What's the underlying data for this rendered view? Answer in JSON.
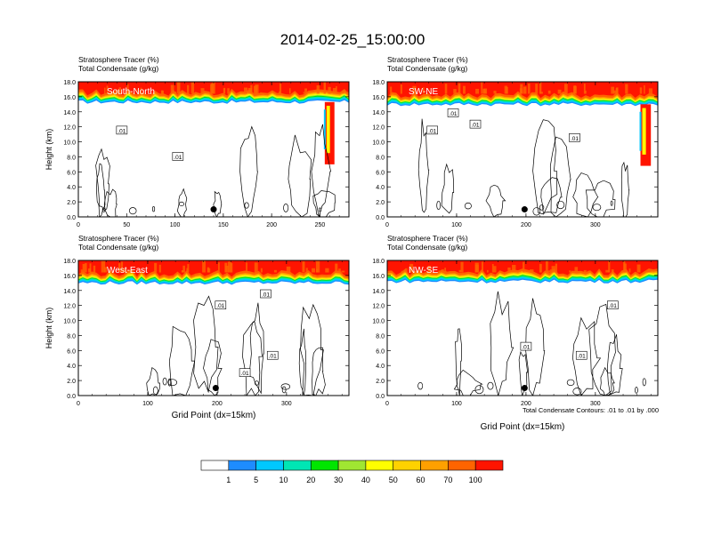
{
  "title": "2014-02-25_15:00:00",
  "colors": {
    "levels": [
      "#ffffff",
      "#1e8cff",
      "#00c8ff",
      "#00e6b4",
      "#00e600",
      "#a0e632",
      "#ffff00",
      "#ffd200",
      "#ffa000",
      "#ff6400",
      "#ff1400"
    ],
    "contour": "#000000"
  },
  "colorbar": {
    "labels": [
      "1",
      "5",
      "10",
      "20",
      "30",
      "40",
      "50",
      "60",
      "70",
      "100"
    ]
  },
  "footnote": "Total Condensate Contours: .01 to .01 by .000",
  "chart_data": [
    {
      "type": "heatmap",
      "label": "South-North",
      "title_line1": "Stratosphere Tracer   (%)",
      "title_line2": "Total Condensate   (g/kg)",
      "ylabel": "Height (km)",
      "xlabel": "",
      "xlim": [
        0,
        280
      ],
      "ylim": [
        0,
        18
      ],
      "xticks": [
        "0",
        "50",
        "100",
        "150",
        "200",
        "250"
      ],
      "xtick_values": [
        0,
        50,
        100,
        150,
        200,
        250
      ],
      "yticks": [
        "0.0",
        "2.0",
        "4.0",
        "6.0",
        "8.0",
        "10.0",
        "12.0",
        "14.0",
        "16.0",
        "18.0"
      ],
      "tracer_base_km": 15.3,
      "wall": [
        255,
        265,
        7.0
      ],
      "marker": [
        140,
        1.0
      ],
      "contour_labels": [
        {
          "text": ".01",
          "x": 45,
          "y": 11.5
        },
        {
          "text": ".01",
          "x": 103,
          "y": 8.0
        }
      ]
    },
    {
      "type": "heatmap",
      "label": "SW-NE",
      "title_line1": "Stratosphere Tracer   (%)",
      "title_line2": "Total Condensate   (g/kg)",
      "ylabel": "",
      "xlabel": "",
      "xlim": [
        0,
        390
      ],
      "ylim": [
        0,
        18
      ],
      "xticks": [
        "0",
        "100",
        "200",
        "300"
      ],
      "xtick_values": [
        0,
        100,
        200,
        300
      ],
      "yticks": [
        "0.0",
        "2.0",
        "4.0",
        "6.0",
        "8.0",
        "10.0",
        "12.0",
        "14.0",
        "16.0",
        "18.0"
      ],
      "tracer_base_km": 15.0,
      "wall": [
        365,
        380,
        6.8
      ],
      "marker": [
        198,
        1.0
      ],
      "contour_labels": [
        {
          "text": ".01",
          "x": 65,
          "y": 11.5
        },
        {
          "text": ".01",
          "x": 127,
          "y": 12.3
        },
        {
          "text": ".01",
          "x": 270,
          "y": 10.5
        },
        {
          "text": ".01",
          "x": 95,
          "y": 13.8
        }
      ]
    },
    {
      "type": "heatmap",
      "label": "West-East",
      "title_line1": "Stratosphere Tracer   (%)",
      "title_line2": "Total Condensate   (g/kg)",
      "ylabel": "Height (km)",
      "xlabel": "Grid Point (dx=15km)",
      "xlim": [
        0,
        390
      ],
      "ylim": [
        0,
        18
      ],
      "xticks": [
        "0",
        "100",
        "200",
        "300"
      ],
      "xtick_values": [
        0,
        100,
        200,
        300
      ],
      "yticks": [
        "0.0",
        "2.0",
        "4.0",
        "6.0",
        "8.0",
        "10.0",
        "12.0",
        "14.0",
        "16.0",
        "18.0"
      ],
      "tracer_base_km": 15.0,
      "wall": null,
      "marker": [
        198,
        1.0
      ],
      "contour_labels": [
        {
          "text": ".01",
          "x": 205,
          "y": 12.0
        },
        {
          "text": ".01",
          "x": 270,
          "y": 13.5
        },
        {
          "text": ".01",
          "x": 280,
          "y": 5.3
        },
        {
          "text": ".01",
          "x": 240,
          "y": 3.0
        }
      ]
    },
    {
      "type": "heatmap",
      "label": "NW-SE",
      "title_line1": "Stratosphere Tracer   (%)",
      "title_line2": "Total Condensate   (g/kg)",
      "ylabel": "",
      "xlabel": "Grid Point (dx=15km)",
      "xlim": [
        0,
        390
      ],
      "ylim": [
        0,
        18
      ],
      "xticks": [
        "0",
        "100",
        "200",
        "300"
      ],
      "xtick_values": [
        0,
        100,
        200,
        300
      ],
      "yticks": [
        "0.0",
        "2.0",
        "4.0",
        "6.0",
        "8.0",
        "10.0",
        "12.0",
        "14.0",
        "16.0",
        "18.0"
      ],
      "tracer_base_km": 15.2,
      "wall": null,
      "marker": [
        198,
        1.0
      ],
      "contour_labels": [
        {
          "text": ".01",
          "x": 325,
          "y": 12.0
        },
        {
          "text": ".01",
          "x": 200,
          "y": 6.5
        },
        {
          "text": ".01",
          "x": 280,
          "y": 5.3
        }
      ]
    }
  ]
}
